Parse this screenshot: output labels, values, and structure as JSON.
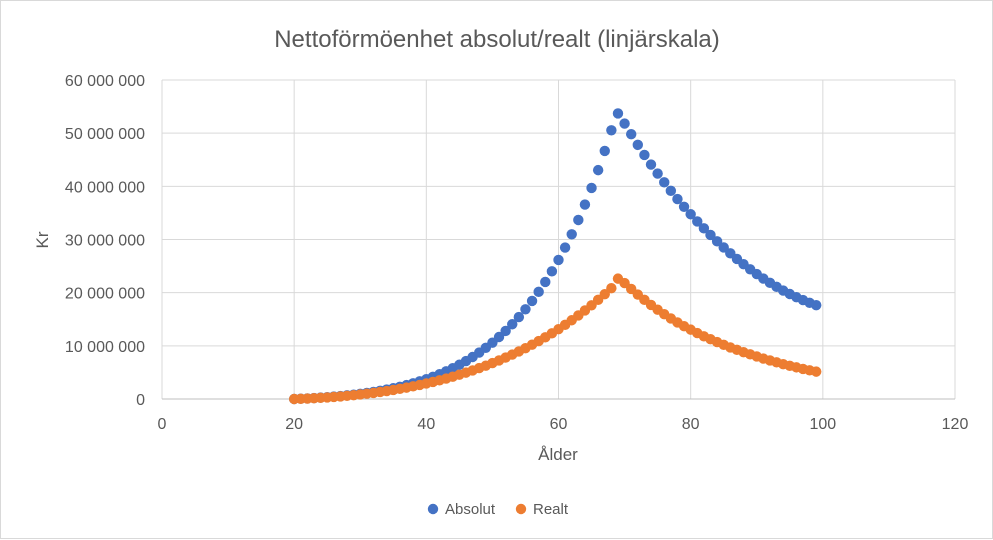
{
  "chart_data": {
    "type": "scatter",
    "title": "Nettoförmöenhet absolut/realt (linjärskala)",
    "xlabel": "Ålder",
    "ylabel": "Kr",
    "xlim": [
      0,
      120
    ],
    "ylim": [
      0,
      60000000
    ],
    "x_ticks": [
      0,
      20,
      40,
      60,
      80,
      100,
      120
    ],
    "y_ticks": [
      0,
      10000000,
      20000000,
      30000000,
      40000000,
      50000000,
      60000000
    ],
    "x_tick_labels": [
      "0",
      "20",
      "40",
      "60",
      "80",
      "100",
      "120"
    ],
    "y_tick_labels": [
      "0",
      "10 000 000",
      "20 000 000",
      "30 000 000",
      "40 000 000",
      "50 000 000",
      "60 000 000"
    ],
    "grid": true,
    "legend_position": "bottom",
    "series": [
      {
        "name": "Absolut",
        "color": "#4472c4",
        "x": [
          20,
          21,
          22,
          23,
          24,
          25,
          26,
          27,
          28,
          29,
          30,
          31,
          32,
          33,
          34,
          35,
          36,
          37,
          38,
          39,
          40,
          41,
          42,
          43,
          44,
          45,
          46,
          47,
          48,
          49,
          50,
          51,
          52,
          53,
          54,
          55,
          56,
          57,
          58,
          59,
          60,
          61,
          62,
          63,
          64,
          65,
          66,
          67,
          68,
          69,
          70,
          71,
          72,
          73,
          74,
          75,
          76,
          77,
          78,
          79,
          80,
          81,
          82,
          83,
          84,
          85,
          86,
          87,
          88,
          89,
          90,
          91,
          92,
          93,
          94,
          95,
          96,
          97,
          98,
          99
        ],
        "y": [
          0,
          50000,
          110000,
          180000,
          260000,
          350000,
          450000,
          560000,
          680000,
          820000,
          970000,
          1140000,
          1330000,
          1540000,
          1770000,
          2020000,
          2300000,
          2610000,
          2950000,
          3320000,
          3730000,
          4180000,
          4670000,
          5210000,
          5800000,
          6440000,
          7140000,
          7900000,
          8730000,
          9630000,
          10600000,
          11660000,
          12810000,
          14060000,
          15410000,
          16870000,
          18450000,
          20160000,
          22010000,
          24010000,
          26160000,
          28480000,
          30980000,
          33670000,
          36570000,
          39690000,
          43050000,
          46660000,
          50540000,
          53710000,
          51800000,
          49800000,
          47800000,
          45900000,
          44100000,
          42400000,
          40750000,
          39150000,
          37600000,
          36150000,
          34750000,
          33400000,
          32100000,
          30850000,
          29650000,
          28500000,
          27400000,
          26350000,
          25350000,
          24400000,
          23500000,
          22650000,
          21850000,
          21100000,
          20400000,
          19750000,
          19150000,
          18600000,
          18100000,
          17650000
        ]
      },
      {
        "name": "Realt",
        "color": "#ed7d31",
        "x": [
          20,
          21,
          22,
          23,
          24,
          25,
          26,
          27,
          28,
          29,
          30,
          31,
          32,
          33,
          34,
          35,
          36,
          37,
          38,
          39,
          40,
          41,
          42,
          43,
          44,
          45,
          46,
          47,
          48,
          49,
          50,
          51,
          52,
          53,
          54,
          55,
          56,
          57,
          58,
          59,
          60,
          61,
          62,
          63,
          64,
          65,
          66,
          67,
          68,
          69,
          70,
          71,
          72,
          73,
          74,
          75,
          76,
          77,
          78,
          79,
          80,
          81,
          82,
          83,
          84,
          85,
          86,
          87,
          88,
          89,
          90,
          91,
          92,
          93,
          94,
          95,
          96,
          97,
          98,
          99
        ],
        "y": [
          0,
          40000,
          90000,
          150000,
          220000,
          300000,
          390000,
          490000,
          600000,
          720000,
          850000,
          990000,
          1150000,
          1320000,
          1500000,
          1700000,
          1910000,
          2140000,
          2380000,
          2640000,
          2920000,
          3210000,
          3520000,
          3850000,
          4200000,
          4570000,
          4960000,
          5370000,
          5810000,
          6270000,
          6750000,
          7260000,
          7790000,
          8350000,
          8940000,
          9560000,
          10210000,
          10890000,
          11600000,
          12350000,
          13130000,
          13950000,
          14810000,
          15710000,
          16650000,
          17630000,
          18650000,
          19720000,
          20840000,
          22640000,
          21800000,
          20700000,
          19650000,
          18650000,
          17700000,
          16800000,
          15950000,
          15150000,
          14400000,
          13700000,
          13050000,
          12400000,
          11800000,
          11250000,
          10700000,
          10200000,
          9700000,
          9250000,
          8800000,
          8400000,
          8000000,
          7600000,
          7250000,
          6900000,
          6550000,
          6250000,
          5950000,
          5650000,
          5400000,
          5150000
        ]
      }
    ]
  }
}
